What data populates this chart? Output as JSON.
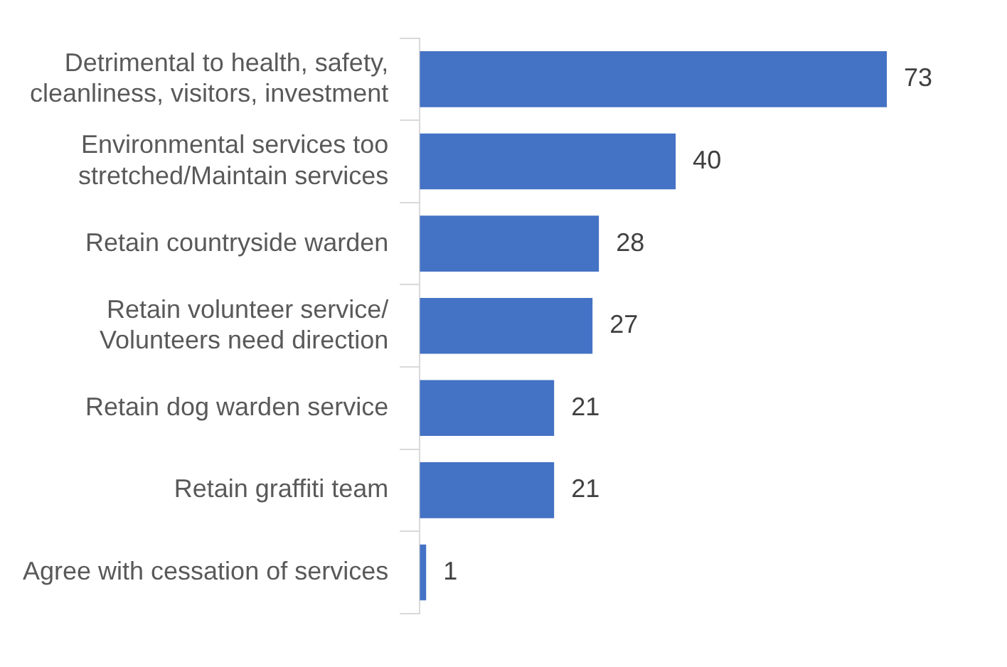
{
  "chart_data": {
    "type": "bar",
    "orientation": "horizontal",
    "tick_labels": "y",
    "data_labels": true,
    "categories": [
      "Detrimental to health, safety,\ncleanliness, visitors, investment",
      "Environmental services too\nstretched/Maintain services",
      "Retain countryside warden",
      "Retain volunteer service/\nVolunteers need direction",
      "Retain dog warden service",
      "Retain graffiti team",
      "Agree with cessation of services"
    ],
    "values": [
      73,
      40,
      28,
      27,
      21,
      21,
      1
    ],
    "color": "#4472c4"
  }
}
